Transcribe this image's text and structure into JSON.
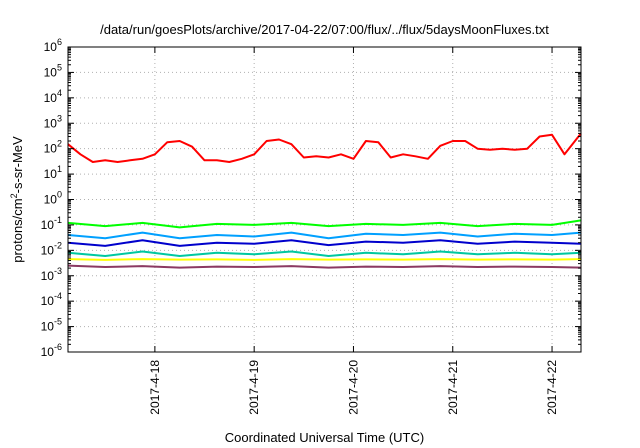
{
  "chart_data": {
    "type": "line",
    "title": "/data/run/goesPlots/archive/2017-04-22/07:00/flux/../flux/5daysMoonFluxes.txt",
    "xlabel": "Coordinated Universal Time (UTC)",
    "ylabel": {
      "main": "protons/cm",
      "sup": "2",
      "rest": "-s-sr-MeV"
    },
    "yscale": "log",
    "ylim": [
      1e-06,
      1000000.0
    ],
    "y_ticks": [
      {
        "value": 1000000.0,
        "base": "10",
        "exp": "6"
      },
      {
        "value": 100000.0,
        "base": "10",
        "exp": "5"
      },
      {
        "value": 10000.0,
        "base": "10",
        "exp": "4"
      },
      {
        "value": 1000.0,
        "base": "10",
        "exp": "3"
      },
      {
        "value": 100.0,
        "base": "10",
        "exp": "2"
      },
      {
        "value": 10.0,
        "base": "10",
        "exp": "1"
      },
      {
        "value": 1.0,
        "base": "10",
        "exp": "0"
      },
      {
        "value": 0.1,
        "base": "10",
        "exp": "-1"
      },
      {
        "value": 0.01,
        "base": "10",
        "exp": "-2"
      },
      {
        "value": 0.001,
        "base": "10",
        "exp": "-3"
      },
      {
        "value": 0.0001,
        "base": "10",
        "exp": "-4"
      },
      {
        "value": 1e-05,
        "base": "10",
        "exp": "-5"
      },
      {
        "value": 1e-06,
        "base": "10",
        "exp": "-6"
      }
    ],
    "xlim": [
      "2017-04-17T03:00",
      "2017-04-22T07:00"
    ],
    "x_ticks": [
      {
        "value": "2017-04-18T00:00",
        "label": "2017-4-18"
      },
      {
        "value": "2017-04-19T00:00",
        "label": "2017-4-19"
      },
      {
        "value": "2017-04-20T00:00",
        "label": "2017-4-20"
      },
      {
        "value": "2017-04-21T00:00",
        "label": "2017-4-21"
      },
      {
        "value": "2017-04-22T00:00",
        "label": "2017-4-22"
      }
    ],
    "grid": true,
    "legend": false,
    "series": [
      {
        "color": "#ff0000",
        "x": [
          "2017-04-17T03:00",
          "2017-04-17T06:00",
          "2017-04-17T09:00",
          "2017-04-17T12:00",
          "2017-04-17T15:00",
          "2017-04-17T18:00",
          "2017-04-17T21:00",
          "2017-04-18T00:00",
          "2017-04-18T03:00",
          "2017-04-18T06:00",
          "2017-04-18T09:00",
          "2017-04-18T12:00",
          "2017-04-18T15:00",
          "2017-04-18T18:00",
          "2017-04-18T21:00",
          "2017-04-19T00:00",
          "2017-04-19T03:00",
          "2017-04-19T06:00",
          "2017-04-19T09:00",
          "2017-04-19T12:00",
          "2017-04-19T15:00",
          "2017-04-19T18:00",
          "2017-04-19T21:00",
          "2017-04-20T00:00",
          "2017-04-20T03:00",
          "2017-04-20T06:00",
          "2017-04-20T09:00",
          "2017-04-20T12:00",
          "2017-04-20T15:00",
          "2017-04-20T18:00",
          "2017-04-20T21:00",
          "2017-04-21T00:00",
          "2017-04-21T03:00",
          "2017-04-21T06:00",
          "2017-04-21T09:00",
          "2017-04-21T12:00",
          "2017-04-21T15:00",
          "2017-04-21T18:00",
          "2017-04-21T21:00",
          "2017-04-22T00:00",
          "2017-04-22T03:00",
          "2017-04-22T07:00"
        ],
        "y": [
          150,
          60,
          30,
          35,
          30,
          35,
          40,
          60,
          180,
          200,
          120,
          35,
          35,
          30,
          40,
          60,
          200,
          230,
          150,
          45,
          50,
          45,
          60,
          40,
          200,
          180,
          45,
          60,
          50,
          40,
          130,
          200,
          200,
          100,
          90,
          100,
          90,
          100,
          300,
          350,
          60,
          400
        ]
      },
      {
        "color": "#00ff00",
        "x": [
          "2017-04-17T03:00",
          "2017-04-17T12:00",
          "2017-04-17T21:00",
          "2017-04-18T06:00",
          "2017-04-18T15:00",
          "2017-04-19T00:00",
          "2017-04-19T09:00",
          "2017-04-19T18:00",
          "2017-04-20T03:00",
          "2017-04-20T12:00",
          "2017-04-20T21:00",
          "2017-04-21T06:00",
          "2017-04-21T15:00",
          "2017-04-22T00:00",
          "2017-04-22T07:00"
        ],
        "y": [
          0.12,
          0.09,
          0.12,
          0.08,
          0.11,
          0.1,
          0.12,
          0.09,
          0.11,
          0.1,
          0.12,
          0.09,
          0.11,
          0.1,
          0.15
        ]
      },
      {
        "color": "#00a0ff",
        "x": [
          "2017-04-17T03:00",
          "2017-04-17T12:00",
          "2017-04-17T21:00",
          "2017-04-18T06:00",
          "2017-04-18T15:00",
          "2017-04-19T00:00",
          "2017-04-19T09:00",
          "2017-04-19T18:00",
          "2017-04-20T03:00",
          "2017-04-20T12:00",
          "2017-04-20T21:00",
          "2017-04-21T06:00",
          "2017-04-21T15:00",
          "2017-04-22T00:00",
          "2017-04-22T07:00"
        ],
        "y": [
          0.04,
          0.03,
          0.05,
          0.03,
          0.04,
          0.035,
          0.05,
          0.03,
          0.045,
          0.04,
          0.05,
          0.035,
          0.045,
          0.04,
          0.05
        ]
      },
      {
        "color": "#0000cc",
        "x": [
          "2017-04-17T03:00",
          "2017-04-17T12:00",
          "2017-04-17T21:00",
          "2017-04-18T06:00",
          "2017-04-18T15:00",
          "2017-04-19T00:00",
          "2017-04-19T09:00",
          "2017-04-19T18:00",
          "2017-04-20T03:00",
          "2017-04-20T12:00",
          "2017-04-20T21:00",
          "2017-04-21T06:00",
          "2017-04-21T15:00",
          "2017-04-22T00:00",
          "2017-04-22T07:00"
        ],
        "y": [
          0.02,
          0.015,
          0.025,
          0.015,
          0.02,
          0.018,
          0.025,
          0.016,
          0.022,
          0.02,
          0.025,
          0.018,
          0.022,
          0.02,
          0.018
        ]
      },
      {
        "color": "#00c8a0",
        "x": [
          "2017-04-17T03:00",
          "2017-04-17T12:00",
          "2017-04-17T21:00",
          "2017-04-18T06:00",
          "2017-04-18T15:00",
          "2017-04-19T00:00",
          "2017-04-19T09:00",
          "2017-04-19T18:00",
          "2017-04-20T03:00",
          "2017-04-20T12:00",
          "2017-04-20T21:00",
          "2017-04-21T06:00",
          "2017-04-21T15:00",
          "2017-04-22T00:00",
          "2017-04-22T07:00"
        ],
        "y": [
          0.008,
          0.006,
          0.009,
          0.006,
          0.008,
          0.007,
          0.009,
          0.006,
          0.008,
          0.007,
          0.009,
          0.007,
          0.008,
          0.007,
          0.008
        ]
      },
      {
        "color": "#ffff00",
        "x": [
          "2017-04-17T03:00",
          "2017-04-17T12:00",
          "2017-04-17T21:00",
          "2017-04-18T06:00",
          "2017-04-18T15:00",
          "2017-04-19T00:00",
          "2017-04-19T09:00",
          "2017-04-19T18:00",
          "2017-04-20T03:00",
          "2017-04-20T12:00",
          "2017-04-20T21:00",
          "2017-04-21T06:00",
          "2017-04-21T15:00",
          "2017-04-22T00:00",
          "2017-04-22T07:00"
        ],
        "y": [
          0.0045,
          0.0042,
          0.0045,
          0.0043,
          0.0044,
          0.0042,
          0.0045,
          0.0043,
          0.0044,
          0.0043,
          0.0045,
          0.0043,
          0.0044,
          0.0043,
          0.0045
        ]
      },
      {
        "color": "#8b3a62",
        "x": [
          "2017-04-17T03:00",
          "2017-04-17T12:00",
          "2017-04-17T21:00",
          "2017-04-18T06:00",
          "2017-04-18T15:00",
          "2017-04-19T00:00",
          "2017-04-19T09:00",
          "2017-04-19T18:00",
          "2017-04-20T03:00",
          "2017-04-20T12:00",
          "2017-04-20T21:00",
          "2017-04-21T06:00",
          "2017-04-21T15:00",
          "2017-04-22T00:00",
          "2017-04-22T07:00"
        ],
        "y": [
          0.0025,
          0.0022,
          0.0024,
          0.0021,
          0.0023,
          0.0022,
          0.0024,
          0.0021,
          0.0023,
          0.0022,
          0.0024,
          0.0022,
          0.0023,
          0.0022,
          0.0021
        ]
      }
    ]
  }
}
